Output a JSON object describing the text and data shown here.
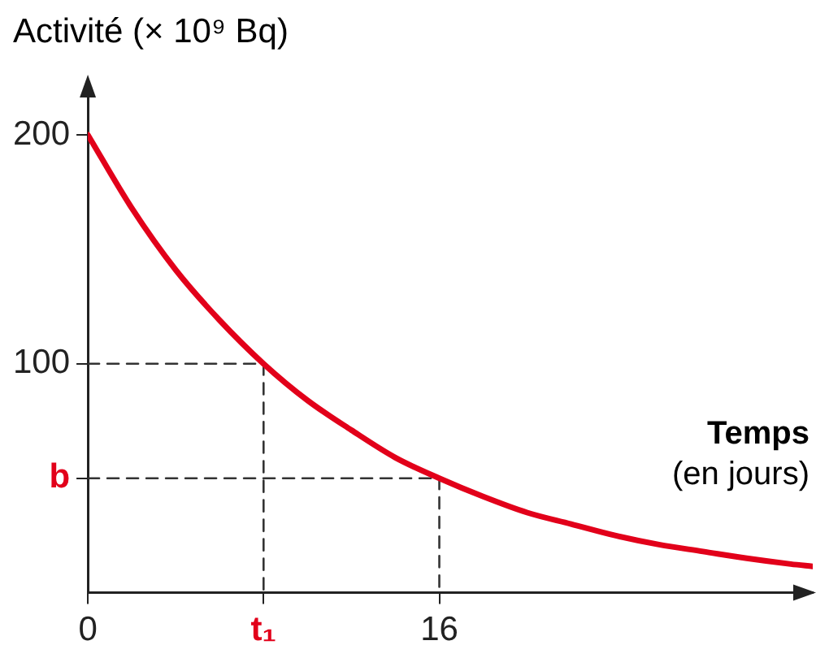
{
  "chart_data": {
    "type": "line",
    "xlabel": "Temps\n(en jours)",
    "ylabel": "Activité (× 10⁹ Bq)",
    "xlim": [
      0,
      33
    ],
    "ylim": [
      0,
      222
    ],
    "xticks": [
      0,
      {
        "value": 8,
        "label": "t₁"
      },
      16
    ],
    "yticks": [
      {
        "value": 50,
        "label": "b"
      },
      100,
      200
    ],
    "grid": false,
    "legend": false,
    "marker": "none",
    "series": [
      {
        "color": "#e2001a",
        "x": [
          0,
          2,
          4,
          6,
          8,
          10,
          12,
          14,
          16,
          18,
          20,
          22,
          24,
          26,
          28,
          30,
          32,
          33
        ],
        "values": [
          200,
          168,
          141,
          119,
          100,
          84,
          71,
          59,
          50,
          42,
          35,
          30,
          25,
          21,
          18,
          15,
          12.5,
          11.5
        ]
      },
      {
        "color": "#333333",
        "line_style": "dashed",
        "x": [
          0,
          8,
          8
        ],
        "values": [
          100,
          100,
          0
        ]
      },
      {
        "color": "#333333",
        "line_style": "dashed",
        "x": [
          0,
          16,
          16
        ],
        "values": [
          50,
          50,
          0
        ]
      }
    ]
  }
}
